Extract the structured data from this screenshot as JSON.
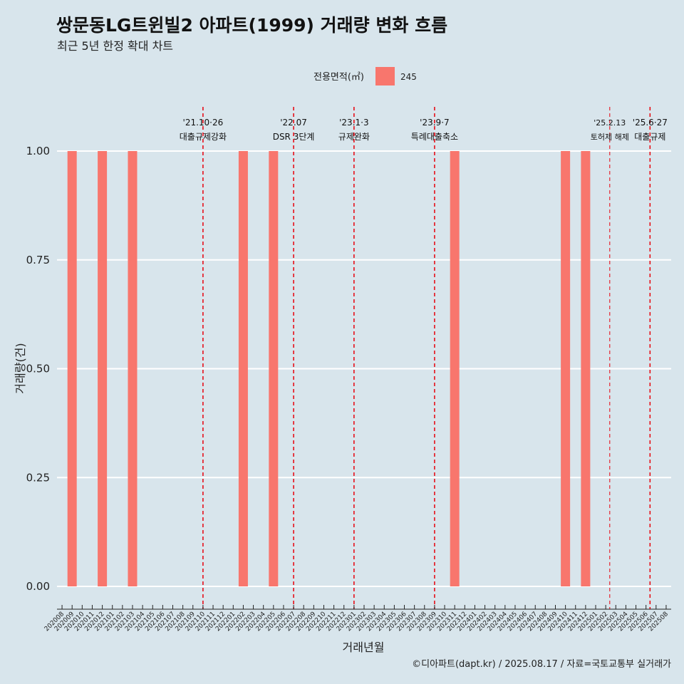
{
  "chart_data": {
    "type": "bar",
    "title": "쌍문동LG트윈빌2 아파트(1999) 거래량 변화 흐름",
    "subtitle": "최근 5년 한정 확대 차트",
    "xlabel": "거래년월",
    "ylabel": "거래량(건)",
    "ylim": [
      0,
      1
    ],
    "yticks": [
      "0.00",
      "0.25",
      "0.50",
      "0.75",
      "1.00"
    ],
    "grid": true,
    "legend": {
      "title": "전용면적(㎡)",
      "placement": "top",
      "entries": [
        {
          "label": "245",
          "color": "#f8766d"
        }
      ]
    },
    "categories": [
      "202008",
      "202009",
      "202010",
      "202011",
      "202012",
      "202101",
      "202102",
      "202103",
      "202104",
      "202105",
      "202106",
      "202107",
      "202108",
      "202109",
      "202110",
      "202111",
      "202112",
      "202201",
      "202202",
      "202203",
      "202204",
      "202205",
      "202206",
      "202207",
      "202208",
      "202209",
      "202210",
      "202211",
      "202212",
      "202301",
      "202302",
      "202303",
      "202304",
      "202305",
      "202306",
      "202307",
      "202308",
      "202309",
      "202310",
      "202311",
      "202312",
      "202401",
      "202402",
      "202403",
      "202404",
      "202405",
      "202406",
      "202407",
      "202408",
      "202409",
      "202410",
      "202411",
      "202412",
      "202501",
      "202502",
      "202503",
      "202504",
      "202505",
      "202506",
      "202507",
      "202508"
    ],
    "series": [
      {
        "name": "245",
        "color": "#f8766d",
        "values": [
          0,
          1,
          0,
          0,
          1,
          0,
          0,
          1,
          0,
          0,
          0,
          0,
          0,
          0,
          0,
          0,
          0,
          0,
          1,
          0,
          0,
          1,
          0,
          0,
          0,
          0,
          0,
          0,
          0,
          0,
          0,
          0,
          0,
          0,
          0,
          0,
          0,
          0,
          0,
          1,
          0,
          0,
          0,
          0,
          0,
          0,
          0,
          0,
          0,
          0,
          1,
          0,
          1,
          0,
          0,
          0,
          0,
          0,
          0,
          0,
          0
        ]
      }
    ],
    "annotations": [
      {
        "date": "202110",
        "offset": 0.0,
        "line1": "'21.10·26",
        "line2": "대출규제강화",
        "style": "bold"
      },
      {
        "date": "202207",
        "offset": 0.0,
        "line1": "'22.07",
        "line2": "DSR 3단계",
        "style": "bold"
      },
      {
        "date": "202301",
        "offset": 0.0,
        "line1": "'23.1·3",
        "line2": "규제완화",
        "style": "bold"
      },
      {
        "date": "202309",
        "offset": 0.0,
        "line1": "'23.9·7",
        "line2": "특례대출축소",
        "style": "bold"
      },
      {
        "date": "202502",
        "offset": 0.4,
        "line1": "'25.2.13",
        "line2": "토허제 해제",
        "style": "light"
      },
      {
        "date": "202506",
        "offset": 0.4,
        "line1": "'25.6·27",
        "line2": "대출규제",
        "style": "bold"
      }
    ]
  },
  "caption": "©디아파트(dapt.kr) / 2025.08.17 / 자료=국토교통부 실거래가"
}
